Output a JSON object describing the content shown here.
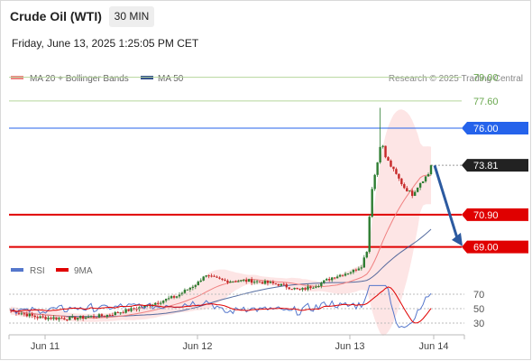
{
  "header": {
    "title": "Crude Oil (WTI)",
    "timeframe": "30 MIN",
    "datetime": "Friday, June 13, 2025 1:25:05 PM CET"
  },
  "credit": "Research © 2025 Trading Central",
  "colors": {
    "candle_up": "#2e7d32",
    "candle_down": "#c62828",
    "ma20": "#f08080",
    "bands_fill": "#fde0e0",
    "ma50": "#2c4a8a",
    "resistance_line": "#2563eb",
    "support_line": "#e00000",
    "target_line": "#b5d69b",
    "target_label": "#6aa84f",
    "last_price_bg": "#222222",
    "arrow": "#2c5aa0",
    "rsi": "#5577cc",
    "rsi_ma": "#e00000"
  },
  "chart_data": [
    {
      "type": "candlestick",
      "legend": [
        {
          "label": "MA 20 + Bollinger Bands",
          "color": "#f08080"
        },
        {
          "label": "MA 50",
          "color": "#2c4a8a"
        }
      ],
      "y_ticks": [],
      "x_ticks": [
        "Jun 11",
        "Jun 12",
        "Jun 13",
        "Jun 14"
      ],
      "price_levels": [
        {
          "value": 79.0,
          "label": "79.00",
          "kind": "target"
        },
        {
          "value": 77.6,
          "label": "77.60",
          "kind": "target"
        },
        {
          "value": 76.0,
          "label": "76.00",
          "kind": "resistance"
        },
        {
          "value": 73.81,
          "label": "73.81",
          "kind": "last"
        },
        {
          "value": 70.9,
          "label": "70.90",
          "kind": "support"
        },
        {
          "value": 69.0,
          "label": "69.00",
          "kind": "support"
        }
      ],
      "last_price": 73.81,
      "forecast_arrow": {
        "from": 73.8,
        "to": 69.2,
        "direction": "down"
      }
    },
    {
      "type": "line",
      "legend": [
        {
          "label": "RSI",
          "color": "#5577cc"
        },
        {
          "label": "9MA",
          "color": "#e00000"
        }
      ],
      "y_ticks": [
        "70",
        "50",
        "30"
      ],
      "levels": [
        70,
        50,
        30
      ]
    }
  ]
}
